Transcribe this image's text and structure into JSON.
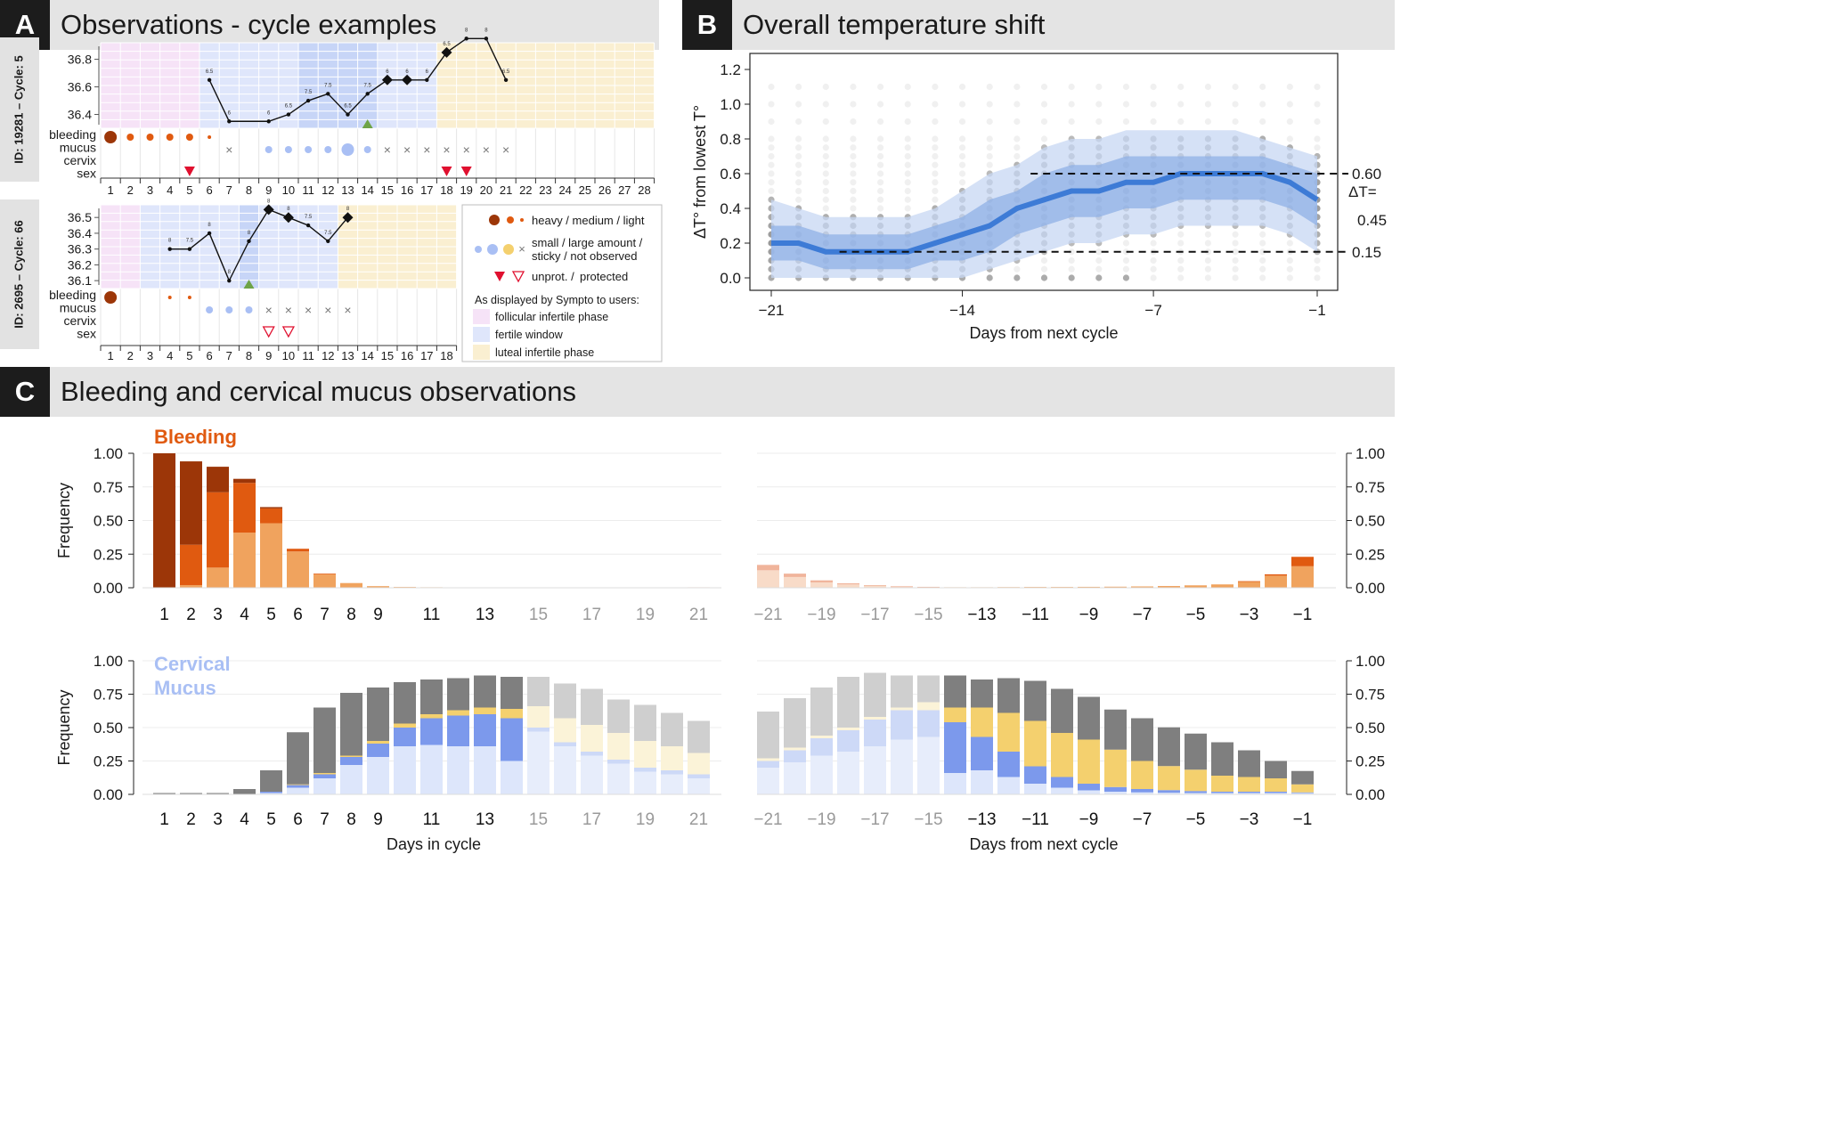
{
  "colors": {
    "heavy": "#9c3608",
    "medium": "#e05a10",
    "light": "#f0a35e",
    "blood_faint": "#f6c9ae",
    "mucus_small": "#dde6fb",
    "mucus_large": "#a9bff4",
    "mucus_large_strong": "#7c99ec",
    "mucus_sticky": "#f7efcc",
    "mucus_sticky_strong": "#f4d06e",
    "not_observed": "#7f7f7f",
    "not_observed_faint": "#c9c9c9",
    "follicular": "#f6e3f7",
    "fertile": "#dfe6fb",
    "fertile_dark": "#c7d5f7",
    "luteal": "#faefd1",
    "temp_line": "#3d7bd6",
    "band_inner": "#8fb0e6",
    "band_outer": "#c7d7f3",
    "unprotected": "#e0102f",
    "peak": "#6ea347"
  },
  "panel_a": {
    "letter": "A",
    "title": "Observations - cycle examples",
    "row_labels": [
      "bleeding",
      "mucus",
      "cervix",
      "sex"
    ],
    "legend": {
      "bleeding": "heavy / medium / light",
      "mucus_line1": "small / large amount /",
      "mucus_line2": "sticky / not observed",
      "sex_unprot": "unprot. /",
      "sex_prot": "protected",
      "header": "As displayed by Sympto to users:",
      "follicular": "follicular infertile phase",
      "fertile": "fertile window",
      "luteal": "luteal infertile phase"
    },
    "cycles": [
      {
        "id_label": "ID: 19281 – Cycle: 5",
        "days": 28,
        "y_ticks": [
          36.4,
          36.6,
          36.8
        ],
        "y_tick_labels": [
          "36.4",
          "36.6",
          "36.8"
        ],
        "y_range": [
          36.3,
          36.92
        ],
        "follicular_days": [
          1,
          5
        ],
        "fertile_days": [
          6,
          17
        ],
        "fertile_dark_days": [
          11,
          14
        ],
        "luteal_days": [
          18,
          28
        ],
        "peak_day": 14,
        "temps": [
          {
            "day": 6,
            "value": 36.65,
            "label": "6.5"
          },
          {
            "day": 7,
            "value": 36.35,
            "label": "6"
          },
          {
            "day": 9,
            "value": 36.35,
            "label": "6"
          },
          {
            "day": 10,
            "value": 36.4,
            "label": "6.5"
          },
          {
            "day": 11,
            "value": 36.5,
            "label": "7.5"
          },
          {
            "day": 12,
            "value": 36.55,
            "label": "7.5"
          },
          {
            "day": 13,
            "value": 36.4,
            "label": "6.5"
          },
          {
            "day": 14,
            "value": 36.55,
            "label": "7.5"
          },
          {
            "day": 15,
            "value": 36.65,
            "label": "6",
            "marker": "diamond"
          },
          {
            "day": 16,
            "value": 36.65,
            "label": "6",
            "marker": "diamond"
          },
          {
            "day": 17,
            "value": 36.65,
            "label": "6"
          },
          {
            "day": 18,
            "value": 36.85,
            "label": "6.5",
            "marker": "diamond"
          },
          {
            "day": 19,
            "value": 36.95,
            "label": "8"
          },
          {
            "day": 20,
            "value": 36.95,
            "label": "8"
          },
          {
            "day": 21,
            "value": 36.65,
            "label": "6.5"
          }
        ],
        "bleeding": [
          {
            "day": 1,
            "level": "heavy"
          },
          {
            "day": 2,
            "level": "medium"
          },
          {
            "day": 3,
            "level": "medium"
          },
          {
            "day": 4,
            "level": "medium"
          },
          {
            "day": 5,
            "level": "medium"
          },
          {
            "day": 6,
            "level": "light"
          }
        ],
        "mucus": [
          {
            "day": 7,
            "type": "x"
          },
          {
            "day": 9,
            "type": "small"
          },
          {
            "day": 10,
            "type": "small"
          },
          {
            "day": 11,
            "type": "small"
          },
          {
            "day": 12,
            "type": "small"
          },
          {
            "day": 13,
            "type": "large"
          },
          {
            "day": 14,
            "type": "small"
          },
          {
            "day": 15,
            "type": "x"
          },
          {
            "day": 16,
            "type": "x"
          },
          {
            "day": 17,
            "type": "x"
          },
          {
            "day": 18,
            "type": "x"
          },
          {
            "day": 19,
            "type": "x"
          },
          {
            "day": 20,
            "type": "x"
          },
          {
            "day": 21,
            "type": "x"
          }
        ],
        "sex": [
          {
            "day": 5,
            "type": "unprotected"
          },
          {
            "day": 18,
            "type": "unprotected"
          },
          {
            "day": 19,
            "type": "unprotected"
          }
        ]
      },
      {
        "id_label": "ID: 2695 – Cycle: 66",
        "days": 18,
        "y_ticks": [
          36.1,
          36.2,
          36.3,
          36.4,
          36.5
        ],
        "y_tick_labels": [
          "36.1",
          "36.2",
          "36.3",
          "36.4",
          "36.5"
        ],
        "y_range": [
          36.05,
          36.58
        ],
        "follicular_days": [
          1,
          2
        ],
        "fertile_days": [
          3,
          12
        ],
        "fertile_dark_days": [
          8,
          8
        ],
        "luteal_days": [
          13,
          18
        ],
        "peak_day": 8,
        "temps": [
          {
            "day": 4,
            "value": 36.3,
            "label": "8"
          },
          {
            "day": 5,
            "value": 36.3,
            "label": "7.5"
          },
          {
            "day": 6,
            "value": 36.4,
            "label": "8"
          },
          {
            "day": 7,
            "value": 36.1,
            "label": "8"
          },
          {
            "day": 8,
            "value": 36.35,
            "label": "8"
          },
          {
            "day": 9,
            "value": 36.55,
            "label": "8",
            "marker": "diamond"
          },
          {
            "day": 10,
            "value": 36.5,
            "label": "8",
            "marker": "diamond"
          },
          {
            "day": 11,
            "value": 36.45,
            "label": "7.5"
          },
          {
            "day": 12,
            "value": 36.35,
            "label": "7.5"
          },
          {
            "day": 13,
            "value": 36.5,
            "label": "8",
            "marker": "diamond"
          }
        ],
        "bleeding": [
          {
            "day": 1,
            "level": "heavy"
          },
          {
            "day": 4,
            "level": "light"
          },
          {
            "day": 5,
            "level": "light"
          }
        ],
        "mucus": [
          {
            "day": 6,
            "type": "small"
          },
          {
            "day": 7,
            "type": "small"
          },
          {
            "day": 8,
            "type": "small"
          },
          {
            "day": 9,
            "type": "x"
          },
          {
            "day": 10,
            "type": "x"
          },
          {
            "day": 11,
            "type": "x"
          },
          {
            "day": 12,
            "type": "x"
          },
          {
            "day": 13,
            "type": "x"
          }
        ],
        "sex": [
          {
            "day": 9,
            "type": "protected"
          },
          {
            "day": 10,
            "type": "protected"
          }
        ]
      }
    ]
  },
  "panel_b": {
    "letter": "B",
    "title": "Overall temperature shift",
    "ylabel": "ΔT° from lowest T°",
    "xlabel": "Days from next cycle",
    "annotation_high": "0.60",
    "annotation_low": "0.15",
    "delta_label_1": "ΔT=",
    "delta_label_2": "0.45"
  },
  "panel_c": {
    "letter": "C",
    "title": "Bleeding and cervical mucus observations",
    "bleeding_title": "Bleeding",
    "mucus_title_1": "Cervical",
    "mucus_title_2": "Mucus",
    "ylabel": "Frequency",
    "xlabel_left": "Days in cycle",
    "xlabel_right": "Days from next cycle"
  },
  "chart_data": [
    {
      "type": "line",
      "title": "Overall temperature shift",
      "xlabel": "Days from next cycle",
      "ylabel": "ΔT° from lowest T°",
      "xlim": [
        -21,
        -1
      ],
      "ylim": [
        0,
        1.2
      ],
      "x_ticks": [
        -21,
        -14,
        -7,
        -1
      ],
      "x_tick_labels": [
        "−21",
        "−14",
        "−7",
        "−1"
      ],
      "y_ticks": [
        0.0,
        0.2,
        0.4,
        0.6,
        0.8,
        1.0,
        1.2
      ],
      "y_tick_labels": [
        "0.0",
        "0.2",
        "0.4",
        "0.6",
        "0.8",
        "1.0",
        "1.2"
      ],
      "x": [
        -21,
        -20,
        -19,
        -18,
        -17,
        -16,
        -15,
        -14,
        -13,
        -12,
        -11,
        -10,
        -9,
        -8,
        -7,
        -6,
        -5,
        -4,
        -3,
        -2,
        -1
      ],
      "median": [
        0.2,
        0.2,
        0.15,
        0.15,
        0.15,
        0.15,
        0.2,
        0.25,
        0.3,
        0.4,
        0.45,
        0.5,
        0.5,
        0.55,
        0.55,
        0.6,
        0.6,
        0.6,
        0.6,
        0.55,
        0.45
      ],
      "q25": [
        0.1,
        0.1,
        0.05,
        0.05,
        0.05,
        0.05,
        0.1,
        0.1,
        0.15,
        0.25,
        0.3,
        0.35,
        0.35,
        0.4,
        0.4,
        0.45,
        0.45,
        0.45,
        0.45,
        0.4,
        0.3
      ],
      "q75": [
        0.3,
        0.3,
        0.25,
        0.25,
        0.25,
        0.25,
        0.3,
        0.35,
        0.45,
        0.5,
        0.6,
        0.65,
        0.65,
        0.7,
        0.7,
        0.7,
        0.7,
        0.7,
        0.7,
        0.65,
        0.6
      ],
      "q10": [
        0.0,
        0.0,
        0.0,
        0.0,
        0.0,
        0.0,
        0.0,
        0.0,
        0.05,
        0.1,
        0.15,
        0.2,
        0.2,
        0.25,
        0.25,
        0.3,
        0.3,
        0.3,
        0.3,
        0.25,
        0.15
      ],
      "q90": [
        0.45,
        0.4,
        0.35,
        0.35,
        0.35,
        0.35,
        0.4,
        0.5,
        0.6,
        0.65,
        0.75,
        0.8,
        0.8,
        0.85,
        0.85,
        0.85,
        0.85,
        0.85,
        0.8,
        0.75,
        0.7
      ],
      "reference_lines": [
        0.6,
        0.15
      ]
    },
    {
      "type": "bar",
      "title": "Bleeding (days in cycle)",
      "ylabel": "Frequency",
      "ylim": [
        0,
        1
      ],
      "y_ticks": [
        0,
        0.25,
        0.5,
        0.75,
        1.0
      ],
      "y_tick_labels": [
        "0.00",
        "0.25",
        "0.50",
        "0.75",
        "1.00"
      ],
      "categories": [
        1,
        2,
        3,
        4,
        5,
        6,
        7,
        8,
        9,
        10,
        11,
        12,
        13,
        14,
        15,
        16,
        17,
        18,
        19,
        20,
        21
      ],
      "tick_labels": [
        "1",
        "2",
        "3",
        "4",
        "5",
        "6",
        "7",
        "8",
        "9",
        "11",
        "13",
        "15",
        "17",
        "19",
        "21"
      ],
      "series": [
        {
          "name": "light",
          "values": [
            0.0,
            0.02,
            0.15,
            0.41,
            0.48,
            0.27,
            0.1,
            0.035,
            0.012,
            0.006,
            0.004,
            0.003,
            0.003,
            0.003,
            0.003,
            0.003,
            0.003,
            0.003,
            0.003,
            0.003,
            0.004
          ]
        },
        {
          "name": "medium",
          "values": [
            0.0,
            0.3,
            0.56,
            0.37,
            0.11,
            0.02,
            0.005,
            0.0,
            0.0,
            0.0,
            0.0,
            0.0,
            0.0,
            0.0,
            0.0,
            0.0,
            0.0,
            0.0,
            0.0,
            0.0,
            0.0
          ]
        },
        {
          "name": "heavy",
          "values": [
            1.0,
            0.62,
            0.19,
            0.03,
            0.01,
            0.0,
            0.0,
            0.0,
            0.0,
            0.0,
            0.0,
            0.0,
            0.0,
            0.0,
            0.0,
            0.0,
            0.0,
            0.0,
            0.0,
            0.0,
            0.0
          ]
        }
      ]
    },
    {
      "type": "bar",
      "title": "Bleeding (days from next cycle)",
      "ylabel": "Frequency",
      "ylim": [
        0,
        1
      ],
      "categories": [
        -21,
        -20,
        -19,
        -18,
        -17,
        -16,
        -15,
        -14,
        -13,
        -12,
        -11,
        -10,
        -9,
        -8,
        -7,
        -6,
        -5,
        -4,
        -3,
        -2,
        -1
      ],
      "tick_labels": [
        "−21",
        "−19",
        "−17",
        "−15",
        "−13",
        "−11",
        "−9",
        "−7",
        "−5",
        "−3",
        "−1"
      ],
      "series": [
        {
          "name": "light",
          "values": [
            0.13,
            0.08,
            0.04,
            0.025,
            0.015,
            0.008,
            0.005,
            0.004,
            0.004,
            0.005,
            0.006,
            0.006,
            0.007,
            0.008,
            0.01,
            0.013,
            0.018,
            0.025,
            0.045,
            0.09,
            0.16
          ]
        },
        {
          "name": "medium",
          "values": [
            0.04,
            0.025,
            0.015,
            0.008,
            0.005,
            0.003,
            0.002,
            0.0,
            0.0,
            0.0,
            0.0,
            0.0,
            0.0,
            0.0,
            0.0,
            0.0,
            0.0,
            0.0,
            0.004,
            0.01,
            0.07
          ]
        }
      ]
    },
    {
      "type": "bar",
      "title": "Cervical Mucus (days in cycle)",
      "ylabel": "Frequency",
      "xlabel": "Days in cycle",
      "ylim": [
        0,
        1
      ],
      "categories": [
        1,
        2,
        3,
        4,
        5,
        6,
        7,
        8,
        9,
        10,
        11,
        12,
        13,
        14,
        15,
        16,
        17,
        18,
        19,
        20,
        21
      ],
      "series": [
        {
          "name": "small",
          "values": [
            0.0,
            0.0,
            0.0,
            0.0,
            0.01,
            0.05,
            0.12,
            0.22,
            0.28,
            0.36,
            0.37,
            0.36,
            0.36,
            0.25,
            0.47,
            0.36,
            0.29,
            0.23,
            0.17,
            0.15,
            0.12
          ]
        },
        {
          "name": "large",
          "values": [
            0.0,
            0.0,
            0.0,
            0.0,
            0.01,
            0.02,
            0.03,
            0.06,
            0.1,
            0.14,
            0.2,
            0.23,
            0.24,
            0.32,
            0.03,
            0.03,
            0.03,
            0.03,
            0.03,
            0.03,
            0.03
          ]
        },
        {
          "name": "sticky",
          "values": [
            0.0,
            0.0,
            0.0,
            0.0,
            0.0,
            0.005,
            0.01,
            0.01,
            0.02,
            0.03,
            0.03,
            0.04,
            0.05,
            0.07,
            0.16,
            0.18,
            0.2,
            0.2,
            0.2,
            0.18,
            0.16
          ]
        },
        {
          "name": "not observed",
          "values": [
            0.01,
            0.01,
            0.01,
            0.04,
            0.16,
            0.39,
            0.49,
            0.47,
            0.4,
            0.31,
            0.26,
            0.24,
            0.24,
            0.24,
            0.22,
            0.26,
            0.27,
            0.25,
            0.27,
            0.25,
            0.24
          ]
        }
      ]
    },
    {
      "type": "bar",
      "title": "Cervical Mucus (days from next cycle)",
      "ylabel": "Frequency",
      "xlabel": "Days from next cycle",
      "ylim": [
        0,
        1
      ],
      "categories": [
        -21,
        -20,
        -19,
        -18,
        -17,
        -16,
        -15,
        -14,
        -13,
        -12,
        -11,
        -10,
        -9,
        -8,
        -7,
        -6,
        -5,
        -4,
        -3,
        -2,
        -1
      ],
      "series": [
        {
          "name": "small",
          "values": [
            0.2,
            0.24,
            0.29,
            0.32,
            0.36,
            0.41,
            0.43,
            0.16,
            0.18,
            0.13,
            0.08,
            0.05,
            0.03,
            0.02,
            0.015,
            0.012,
            0.01,
            0.01,
            0.01,
            0.01,
            0.01
          ]
        },
        {
          "name": "large",
          "values": [
            0.05,
            0.09,
            0.13,
            0.16,
            0.2,
            0.22,
            0.2,
            0.38,
            0.25,
            0.19,
            0.13,
            0.08,
            0.05,
            0.035,
            0.025,
            0.02,
            0.015,
            0.01,
            0.01,
            0.01,
            0.005
          ]
        },
        {
          "name": "sticky",
          "values": [
            0.02,
            0.02,
            0.02,
            0.02,
            0.02,
            0.02,
            0.06,
            0.11,
            0.22,
            0.29,
            0.34,
            0.33,
            0.33,
            0.28,
            0.21,
            0.18,
            0.16,
            0.12,
            0.11,
            0.1,
            0.06
          ]
        },
        {
          "name": "not observed",
          "values": [
            0.35,
            0.37,
            0.36,
            0.38,
            0.33,
            0.24,
            0.2,
            0.24,
            0.21,
            0.26,
            0.3,
            0.33,
            0.32,
            0.3,
            0.32,
            0.29,
            0.27,
            0.25,
            0.2,
            0.13,
            0.1
          ]
        }
      ]
    }
  ]
}
